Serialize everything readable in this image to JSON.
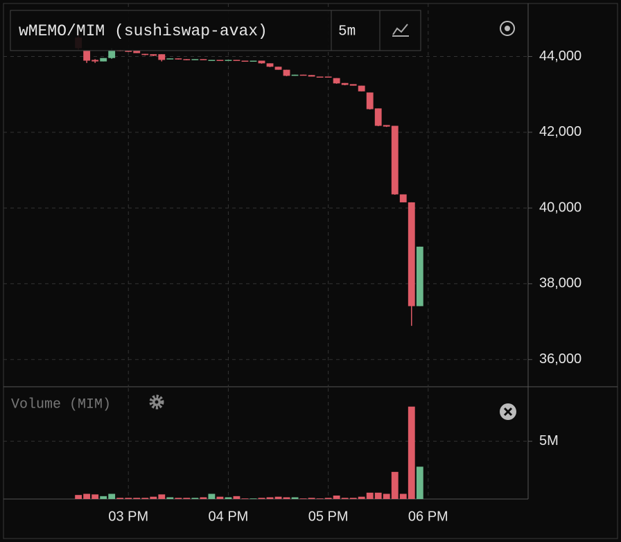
{
  "chart_data": [
    {
      "type": "candlestick",
      "title": "wMEMO/MIM (sushiswap-avax)",
      "interval": "5m",
      "x": [
        14.5,
        14.5833,
        14.6667,
        14.75,
        14.8333,
        14.9167,
        15,
        15.0833,
        15.1667,
        15.25,
        15.3333,
        15.4167,
        15.5,
        15.5833,
        15.6667,
        15.75,
        15.8333,
        15.9167,
        16,
        16.0833,
        16.1667,
        16.25,
        16.3333,
        16.4167,
        16.5,
        16.5833,
        16.6667,
        16.75,
        16.8333,
        16.9167,
        17,
        17.0833,
        17.1667,
        17.25,
        17.3333,
        17.4167,
        17.5,
        17.5833,
        17.6667,
        17.75,
        17.8333,
        17.9167
      ],
      "open": [
        44500,
        44170,
        43910,
        43870,
        43960,
        44170,
        44150,
        44150,
        44070,
        44060,
        44060,
        43930,
        43950,
        43930,
        43910,
        43930,
        43890,
        43910,
        43890,
        43910,
        43890,
        43870,
        43890,
        43820,
        43730,
        43650,
        43490,
        43520,
        43510,
        43470,
        43470,
        43430,
        43300,
        43270,
        43230,
        43050,
        42630,
        42190,
        42170,
        40360,
        40150,
        37410
      ],
      "high": [
        44590,
        44170,
        43930,
        43960,
        44220,
        44180,
        44160,
        44150,
        44070,
        44060,
        44060,
        43950,
        43950,
        43930,
        43930,
        43930,
        43910,
        43910,
        43910,
        43910,
        43890,
        43890,
        43890,
        43820,
        43730,
        43650,
        43520,
        43520,
        43510,
        43470,
        43470,
        43430,
        43300,
        43270,
        43230,
        43050,
        42630,
        42190,
        42170,
        40360,
        40150,
        38980
      ],
      "low": [
        44180,
        43830,
        43830,
        43870,
        43940,
        44140,
        44120,
        44090,
        44030,
        44010,
        43870,
        43930,
        43920,
        43900,
        43910,
        43910,
        43890,
        43890,
        43890,
        43890,
        43870,
        43870,
        43810,
        43720,
        43650,
        43480,
        43490,
        43500,
        43470,
        43450,
        43450,
        43280,
        43240,
        43230,
        43080,
        42600,
        42160,
        42140,
        40350,
        40150,
        36890,
        37410
      ],
      "close": [
        44220,
        43890,
        43870,
        43960,
        44170,
        44150,
        44130,
        44090,
        44040,
        44020,
        43910,
        43950,
        43930,
        43910,
        43930,
        43910,
        43910,
        43890,
        43910,
        43890,
        43870,
        43890,
        43820,
        43730,
        43650,
        43490,
        43520,
        43510,
        43470,
        43450,
        43450,
        43290,
        43250,
        43230,
        43080,
        42610,
        42170,
        42150,
        40360,
        40150,
        37410,
        38980
      ],
      "colors": {
        "up": "#6bb88c",
        "down": "#df5b67"
      },
      "xlim": [
        13.75,
        19.0
      ],
      "ylim": [
        35300,
        45400
      ],
      "yticks": [
        {
          "value": 36000,
          "label": "36,000"
        },
        {
          "value": 38000,
          "label": "38,000"
        },
        {
          "value": 40000,
          "label": "40,000"
        },
        {
          "value": 42000,
          "label": "42,000"
        },
        {
          "value": 44000,
          "label": "44,000"
        }
      ],
      "grid": true
    },
    {
      "type": "bar",
      "title": "Volume (MIM)",
      "x": [
        14.5,
        14.5833,
        14.6667,
        14.75,
        14.8333,
        14.9167,
        15,
        15.0833,
        15.1667,
        15.25,
        15.3333,
        15.4167,
        15.5,
        15.5833,
        15.6667,
        15.75,
        15.8333,
        15.9167,
        16,
        16.0833,
        16.1667,
        16.25,
        16.3333,
        16.4167,
        16.5,
        16.5833,
        16.6667,
        16.75,
        16.8333,
        16.9167,
        17,
        17.0833,
        17.1667,
        17.25,
        17.3333,
        17.4167,
        17.5,
        17.5833,
        17.6667,
        17.75,
        17.8333,
        17.9167
      ],
      "values": [
        350000,
        450000,
        400000,
        250000,
        450000,
        100000,
        100000,
        100000,
        100000,
        200000,
        400000,
        150000,
        100000,
        100000,
        100000,
        150000,
        450000,
        200000,
        150000,
        250000,
        50000,
        50000,
        100000,
        150000,
        200000,
        150000,
        150000,
        50000,
        100000,
        50000,
        100000,
        300000,
        100000,
        100000,
        200000,
        550000,
        550000,
        450000,
        2350000,
        450000,
        8000000,
        2800000
      ],
      "xlim": [
        13.75,
        19.0
      ],
      "ylim": [
        0,
        9600000
      ],
      "yticks": [
        {
          "value": 5000000,
          "label": "5M"
        }
      ],
      "xticks": [
        {
          "value": 15,
          "label": "03 PM"
        },
        {
          "value": 16,
          "label": "04 PM"
        },
        {
          "value": 17,
          "label": "05 PM"
        },
        {
          "value": 18,
          "label": "06 PM"
        }
      ],
      "grid": true
    }
  ]
}
